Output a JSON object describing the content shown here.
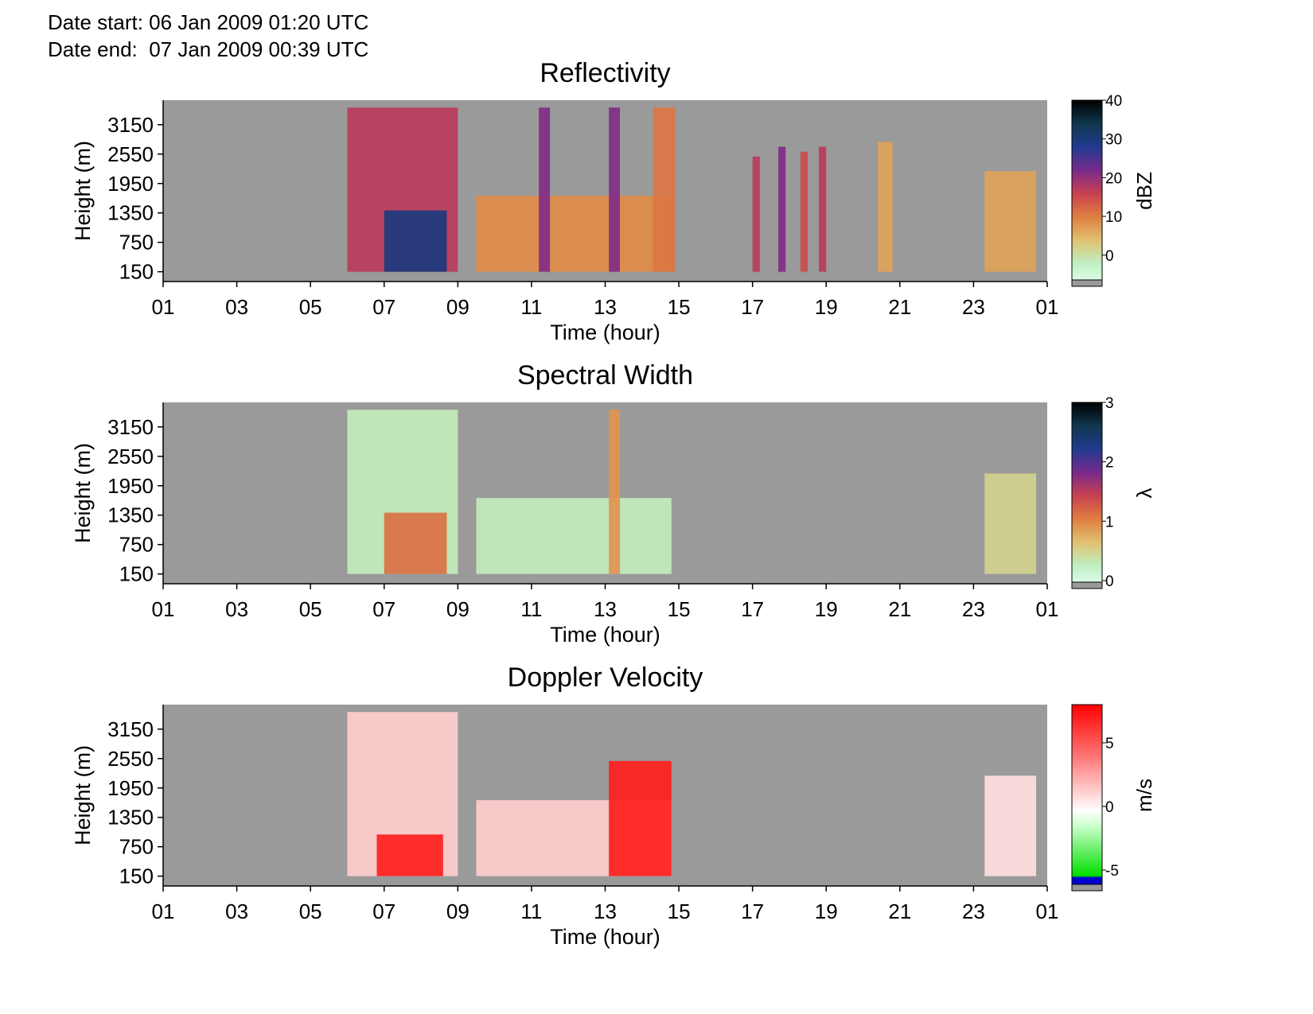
{
  "header": {
    "date_start": "Date start: 06 Jan 2009 01:20 UTC",
    "date_end": "Date end:  07 Jan 2009 00:39 UTC"
  },
  "colors": {
    "no_data": "#9a9a9a",
    "velocity_positive": "#ff0000",
    "velocity_negative": "#00e000",
    "velocity_strong_negative": "#0000d0"
  },
  "chart_data": [
    {
      "type": "heatmap",
      "title": "Reflectivity",
      "xlabel": "Time (hour)",
      "ylabel": "Height (m)",
      "colorbar_label": "dBZ",
      "xticks": [
        "01",
        "03",
        "05",
        "07",
        "09",
        "11",
        "13",
        "15",
        "17",
        "19",
        "21",
        "23",
        "01"
      ],
      "yticks": [
        "150",
        "750",
        "1350",
        "1950",
        "2550",
        "3150"
      ],
      "colorbar_ticks": [
        "0",
        "10",
        "20",
        "30",
        "40"
      ],
      "colorbar_range": [
        -6,
        40
      ],
      "colormap": "reflectivity",
      "events": [
        {
          "start_hour": 6.0,
          "end_hour": 9.0,
          "top_m": 3500,
          "value": 18
        },
        {
          "start_hour": 7.0,
          "end_hour": 8.7,
          "top_m": 1400,
          "value": 30
        },
        {
          "start_hour": 9.5,
          "end_hour": 14.8,
          "top_m": 1700,
          "value": 10
        },
        {
          "start_hour": 11.2,
          "end_hour": 11.5,
          "top_m": 3500,
          "value": 22
        },
        {
          "start_hour": 13.1,
          "end_hour": 13.4,
          "top_m": 3500,
          "value": 22
        },
        {
          "start_hour": 14.3,
          "end_hour": 14.9,
          "top_m": 3500,
          "value": 12
        },
        {
          "start_hour": 17.0,
          "end_hour": 17.2,
          "top_m": 2500,
          "value": 18
        },
        {
          "start_hour": 17.7,
          "end_hour": 17.9,
          "top_m": 2700,
          "value": 22
        },
        {
          "start_hour": 18.3,
          "end_hour": 18.5,
          "top_m": 2600,
          "value": 16
        },
        {
          "start_hour": 18.8,
          "end_hour": 19.0,
          "top_m": 2700,
          "value": 18
        },
        {
          "start_hour": 20.4,
          "end_hour": 20.8,
          "top_m": 2800,
          "value": 8
        },
        {
          "start_hour": 23.3,
          "end_hour": 24.7,
          "top_m": 2200,
          "value": 8
        }
      ]
    },
    {
      "type": "heatmap",
      "title": "Spectral Width",
      "xlabel": "Time (hour)",
      "ylabel": "Height (m)",
      "colorbar_label": "λ",
      "xticks": [
        "01",
        "03",
        "05",
        "07",
        "09",
        "11",
        "13",
        "15",
        "17",
        "19",
        "21",
        "23",
        "01"
      ],
      "yticks": [
        "150",
        "750",
        "1350",
        "1950",
        "2550",
        "3150"
      ],
      "colorbar_ticks": [
        "0",
        "1",
        "2",
        "3"
      ],
      "colorbar_range": [
        0,
        3
      ],
      "colormap": "reflectivity",
      "events": [
        {
          "start_hour": 6.0,
          "end_hour": 9.0,
          "top_m": 3500,
          "value": 0.4
        },
        {
          "start_hour": 7.0,
          "end_hour": 8.7,
          "top_m": 1400,
          "value": 1.2
        },
        {
          "start_hour": 9.5,
          "end_hour": 14.8,
          "top_m": 1700,
          "value": 0.4
        },
        {
          "start_hour": 13.1,
          "end_hour": 13.4,
          "top_m": 3500,
          "value": 1.0
        },
        {
          "start_hour": 23.3,
          "end_hour": 24.7,
          "top_m": 2200,
          "value": 0.6
        }
      ]
    },
    {
      "type": "heatmap",
      "title": "Doppler Velocity",
      "xlabel": "Time (hour)",
      "ylabel": "Height (m)",
      "colorbar_label": "m/s",
      "xticks": [
        "01",
        "03",
        "05",
        "07",
        "09",
        "11",
        "13",
        "15",
        "17",
        "19",
        "21",
        "23",
        "01"
      ],
      "yticks": [
        "150",
        "750",
        "1350",
        "1950",
        "2550",
        "3150"
      ],
      "colorbar_ticks": [
        "-5",
        "0",
        "5"
      ],
      "colorbar_range": [
        -6,
        8
      ],
      "colormap": "velocity",
      "events": [
        {
          "start_hour": 6.0,
          "end_hour": 9.0,
          "top_m": 3500,
          "value": 1.5
        },
        {
          "start_hour": 6.8,
          "end_hour": 8.6,
          "top_m": 1000,
          "value": 7
        },
        {
          "start_hour": 9.5,
          "end_hour": 14.8,
          "top_m": 1700,
          "value": 1.5
        },
        {
          "start_hour": 13.1,
          "end_hour": 14.8,
          "top_m": 2500,
          "value": 7
        },
        {
          "start_hour": 23.3,
          "end_hour": 24.7,
          "top_m": 2200,
          "value": 1.0
        }
      ]
    }
  ]
}
